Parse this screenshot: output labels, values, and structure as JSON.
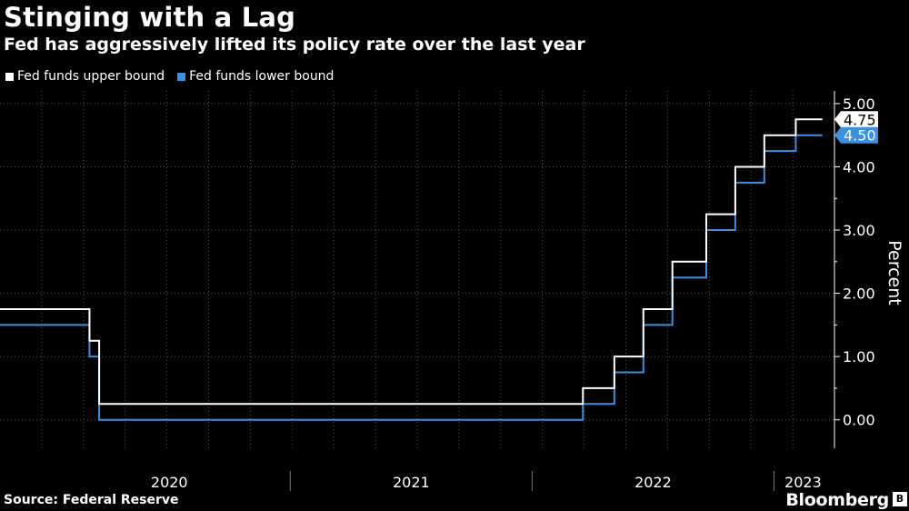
{
  "title": "Stinging with a Lag",
  "subtitle": "Fed has aggressively lifted its policy rate over the last year",
  "source": "Source: Federal Reserve",
  "brand": "Bloomberg",
  "chart_data": {
    "type": "line",
    "step": true,
    "x_range": [
      2019.8,
      2023.25
    ],
    "ylim": [
      -0.45,
      5.2
    ],
    "ylabel": "Percent",
    "y_ticks": [
      0,
      1,
      2,
      3,
      4,
      5
    ],
    "y_tick_labels": [
      "0.00",
      "1.00",
      "2.00",
      "3.00",
      "4.00",
      "5.00"
    ],
    "x_tick_labels": [
      {
        "label": "2020",
        "x": 2020.5
      },
      {
        "label": "2021",
        "x": 2021.5
      },
      {
        "label": "2022",
        "x": 2022.5
      },
      {
        "label": "2023",
        "x": 2023.12
      }
    ],
    "x_separators": [
      2021.0,
      2022.0,
      2023.0
    ],
    "grid": true,
    "series": [
      {
        "name": "Fed funds upper bound",
        "color": "#ffffff",
        "last_label": "4.75",
        "points": [
          [
            2019.8,
            1.75
          ],
          [
            2020.17,
            1.25
          ],
          [
            2020.21,
            0.25
          ],
          [
            2022.21,
            0.5
          ],
          [
            2022.34,
            1.0
          ],
          [
            2022.46,
            1.75
          ],
          [
            2022.58,
            2.5
          ],
          [
            2022.72,
            3.25
          ],
          [
            2022.84,
            4.0
          ],
          [
            2022.96,
            4.5
          ],
          [
            2023.09,
            4.75
          ],
          [
            2023.2,
            4.75
          ]
        ]
      },
      {
        "name": "Fed funds lower bound",
        "color": "#3d8fe0",
        "last_label": "4.50",
        "points": [
          [
            2019.8,
            1.5
          ],
          [
            2020.17,
            1.0
          ],
          [
            2020.21,
            0.0
          ],
          [
            2022.21,
            0.25
          ],
          [
            2022.34,
            0.75
          ],
          [
            2022.46,
            1.5
          ],
          [
            2022.58,
            2.25
          ],
          [
            2022.72,
            3.0
          ],
          [
            2022.84,
            3.75
          ],
          [
            2022.96,
            4.25
          ],
          [
            2023.09,
            4.5
          ],
          [
            2023.2,
            4.5
          ]
        ]
      }
    ]
  }
}
